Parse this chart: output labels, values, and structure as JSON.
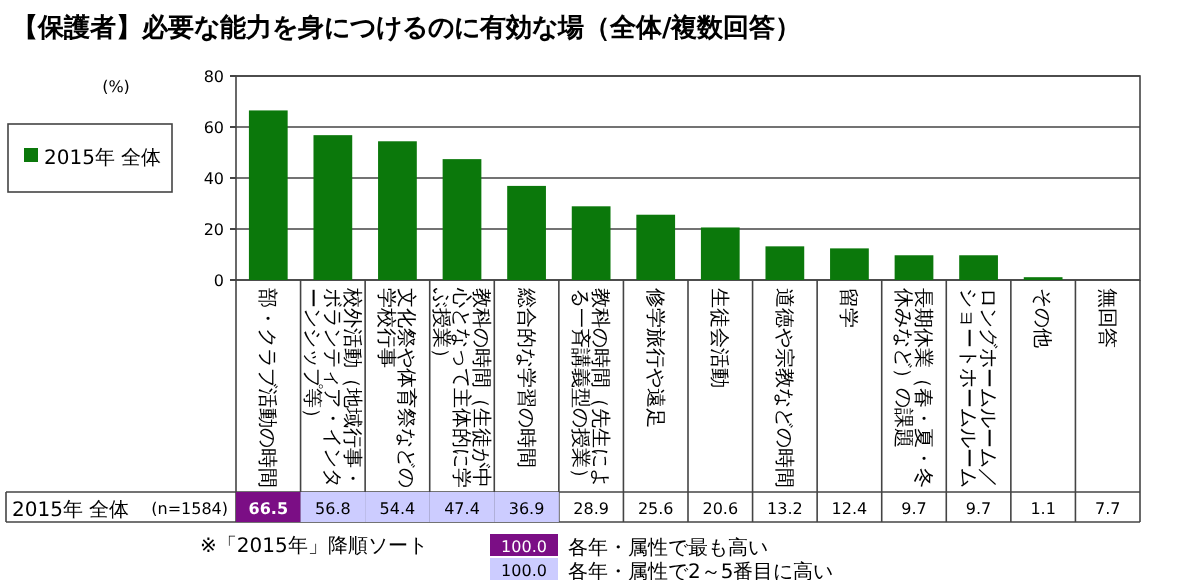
{
  "chart_data": {
    "type": "bar",
    "title": "【保護者】必要な能力を身につけるのに有効な場（全体/複数回答）",
    "ylabel": "(%)",
    "categories": [
      "部・クラブ活動の時間",
      "校外活動（地域行事・ボランティア・インターンシップ等）",
      "文化祭や体育祭などの学校行事",
      "教科の時間（生徒が中心となって主体的に学ぶ授業）",
      "総合的な学習の時間",
      "教科の時間（先生による一斉講義型の授業）",
      "修学旅行や遠足",
      "生徒会活動",
      "道徳や宗教などの時間",
      "留学",
      "長期休業（春・夏・冬休みなど）の課題",
      "ロングホームルーム／ショートホームルーム",
      "その他",
      "無回答"
    ],
    "series": [
      {
        "name": "2015年 全体",
        "color": "#0b780b",
        "values": [
          66.5,
          56.8,
          54.4,
          47.4,
          36.9,
          28.9,
          25.6,
          20.6,
          13.2,
          12.4,
          9.7,
          9.7,
          1.1,
          null
        ],
        "value_labels": [
          "66.5",
          "56.8",
          "54.4",
          "47.4",
          "36.9",
          "28.9",
          "25.6",
          "20.6",
          "13.2",
          "12.4",
          "9.7",
          "9.7",
          "1.1",
          "7.7"
        ]
      }
    ],
    "ylim": [
      0,
      80
    ],
    "yticks": [
      0,
      20,
      40,
      60,
      80
    ],
    "grid": "y",
    "legend": "left",
    "annotations": [
      "(n=1584)",
      "※「2015年」降順ソート",
      "100.0",
      "各年・属性で最も高い",
      "100.0",
      "各年・属性で2～5番目に高い"
    ]
  }
}
